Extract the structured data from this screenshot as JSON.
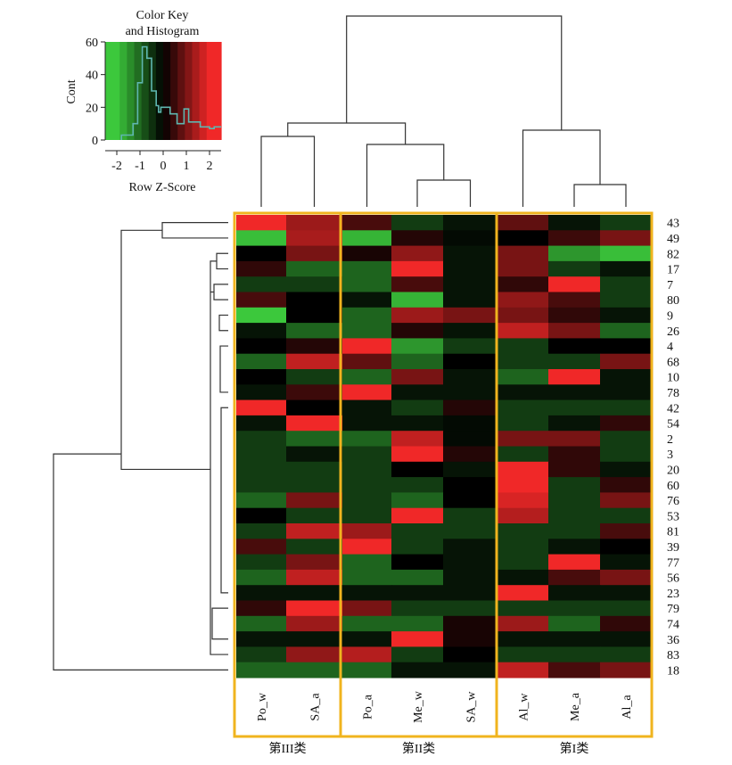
{
  "chart_data": {
    "type": "heatmap",
    "key": {
      "title_line1": "Color Key",
      "title_line2": "and Histogram",
      "ylabel": "Cont",
      "xlabel": "Row Z-Score",
      "y_ticks": [
        "60",
        "40",
        "20",
        "0"
      ],
      "x_ticks": [
        "-2",
        "-1",
        "0",
        "1",
        "2"
      ],
      "x_range": [
        -2.5,
        2.5
      ],
      "y_range": [
        0,
        60
      ],
      "histogram": [
        [
          -1.8,
          0
        ],
        [
          -1.8,
          3
        ],
        [
          -1.3,
          3
        ],
        [
          -1.3,
          10
        ],
        [
          -1.1,
          10
        ],
        [
          -1.1,
          35
        ],
        [
          -0.9,
          35
        ],
        [
          -0.9,
          57
        ],
        [
          -0.7,
          57
        ],
        [
          -0.7,
          50
        ],
        [
          -0.5,
          50
        ],
        [
          -0.5,
          30
        ],
        [
          -0.3,
          30
        ],
        [
          -0.3,
          21
        ],
        [
          -0.2,
          21
        ],
        [
          -0.2,
          17
        ],
        [
          -0.1,
          17
        ],
        [
          -0.1,
          20
        ],
        [
          0.3,
          20
        ],
        [
          0.3,
          16
        ],
        [
          0.6,
          16
        ],
        [
          0.6,
          10
        ],
        [
          0.9,
          10
        ],
        [
          0.9,
          19
        ],
        [
          1.1,
          19
        ],
        [
          1.1,
          11
        ],
        [
          1.6,
          11
        ],
        [
          1.6,
          8
        ],
        [
          2.0,
          8
        ],
        [
          2.0,
          7
        ],
        [
          2.2,
          7
        ],
        [
          2.2,
          8
        ],
        [
          2.5,
          8
        ]
      ]
    },
    "columns": [
      "Po_w",
      "SA_a",
      "Po_a",
      "Me_w",
      "SA_w",
      "Al_w",
      "Me_a",
      "Al_a"
    ],
    "groups": [
      {
        "label": "第III类",
        "columns": [
          "Po_w",
          "SA_a"
        ]
      },
      {
        "label": "第II类",
        "columns": [
          "Po_a",
          "Me_w",
          "SA_w"
        ]
      },
      {
        "label": "第I类",
        "columns": [
          "Al_w",
          "Me_a",
          "Al_a"
        ]
      }
    ],
    "rows": [
      "43",
      "49",
      "82",
      "17",
      "7",
      "80",
      "9",
      "26",
      "4",
      "68",
      "10",
      "78",
      "42",
      "54",
      "2",
      "3",
      "20",
      "60",
      "76",
      "53",
      "81",
      "39",
      "77",
      "56",
      "23",
      "79",
      "74",
      "36",
      "83",
      "18"
    ],
    "values": [
      [
        2.0,
        1.3,
        0.6,
        -0.6,
        -0.2,
        0.8,
        -0.2,
        -0.6
      ],
      [
        -1.9,
        1.4,
        -1.8,
        0.3,
        -0.1,
        0.0,
        0.5,
        1.0
      ],
      [
        0.0,
        1.0,
        0.2,
        1.2,
        -0.2,
        1.0,
        -1.5,
        -1.9
      ],
      [
        0.4,
        -1.0,
        -1.0,
        2.0,
        -0.2,
        1.0,
        -0.6,
        -0.2
      ],
      [
        -0.6,
        -0.6,
        -1.0,
        0.6,
        -0.2,
        0.4,
        2.0,
        -0.6
      ],
      [
        0.6,
        0.0,
        -0.2,
        -1.8,
        -0.2,
        1.2,
        0.6,
        -0.6
      ],
      [
        -2.2,
        0.0,
        -1.0,
        1.3,
        1.0,
        1.0,
        0.4,
        -0.2
      ],
      [
        -0.2,
        -1.0,
        -1.0,
        0.3,
        -0.2,
        1.6,
        1.0,
        -1.0
      ],
      [
        0.0,
        0.3,
        2.0,
        -1.5,
        -0.6,
        -0.6,
        0.0,
        0.0
      ],
      [
        -1.0,
        1.6,
        0.8,
        -1.0,
        0.0,
        -0.6,
        -0.6,
        1.0
      ],
      [
        0.0,
        -0.6,
        -1.0,
        1.0,
        -0.2,
        -1.0,
        2.0,
        -0.2
      ],
      [
        -0.2,
        0.5,
        2.0,
        -0.2,
        -0.2,
        -0.2,
        -0.2,
        -0.2
      ],
      [
        2.0,
        0.0,
        -0.2,
        -0.6,
        0.3,
        -0.6,
        -0.6,
        -0.6
      ],
      [
        -0.2,
        2.0,
        -0.2,
        -0.2,
        -0.1,
        -0.6,
        -0.2,
        0.4
      ],
      [
        -0.6,
        -1.0,
        -1.0,
        1.6,
        -0.1,
        1.0,
        1.0,
        -0.6
      ],
      [
        -0.6,
        -0.2,
        -0.6,
        2.0,
        0.3,
        -0.6,
        0.4,
        -0.6
      ],
      [
        -0.6,
        -0.6,
        -0.6,
        0.0,
        -0.2,
        2.0,
        0.4,
        -0.2
      ],
      [
        -0.6,
        -0.6,
        -0.6,
        -0.6,
        0.0,
        2.0,
        -0.6,
        0.4
      ],
      [
        -1.0,
        1.0,
        -0.6,
        -1.0,
        0.0,
        1.8,
        -0.6,
        1.0
      ],
      [
        0.0,
        -0.6,
        -0.6,
        2.0,
        -0.6,
        1.5,
        -0.6,
        -0.6
      ],
      [
        -0.6,
        1.6,
        1.3,
        -0.6,
        -0.6,
        -0.6,
        -0.6,
        0.6
      ],
      [
        0.6,
        -0.6,
        2.0,
        -0.6,
        -0.2,
        -0.6,
        -0.2,
        0.0
      ],
      [
        -0.6,
        1.0,
        -1.0,
        0.0,
        -0.2,
        -0.6,
        2.0,
        -0.2
      ],
      [
        -1.0,
        1.6,
        -1.0,
        -1.0,
        -0.2,
        -0.2,
        0.6,
        1.0
      ],
      [
        -0.2,
        -0.2,
        -0.2,
        -0.2,
        -0.2,
        2.0,
        -0.2,
        -0.2
      ],
      [
        0.4,
        2.0,
        1.0,
        -0.6,
        -0.6,
        -0.6,
        -0.6,
        -0.6
      ],
      [
        -1.0,
        1.3,
        -1.0,
        -1.0,
        0.2,
        1.3,
        -1.0,
        0.4
      ],
      [
        -0.2,
        -0.2,
        -0.2,
        2.0,
        0.2,
        -0.2,
        -0.2,
        -0.2
      ],
      [
        -0.6,
        1.2,
        1.5,
        -0.6,
        0.0,
        -0.6,
        -0.6,
        -0.6
      ],
      [
        -1.0,
        -1.0,
        -1.0,
        -0.2,
        -0.2,
        1.6,
        0.6,
        1.0
      ]
    ],
    "color_scale": {
      "low": "#3cc83c",
      "mid": "#000000",
      "high": "#f02828"
    },
    "box_color": "#f0b41e",
    "dendrogram": "present (rows and columns)"
  }
}
